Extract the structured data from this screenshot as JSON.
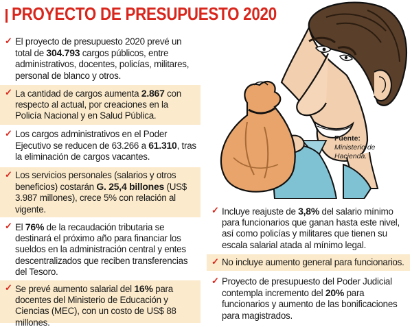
{
  "title": "PROYECTO DE PRESUPUESTO 2020",
  "left_items": [
    {
      "pre": "El proyecto de presupuesto 2020 prevé un total de ",
      "bold": "304.793",
      "post": " cargos públicos, entre administrativos, docentes, policías, militares, personal de blanco y otros."
    },
    {
      "pre": "La cantidad de cargos aumenta ",
      "bold": "2.867",
      "post": " con respecto al actual, por creaciones en la Policía Nacional y en Salud Pública."
    },
    {
      "pre": "Los cargos administrativos en el Poder Ejecutivo se reducen de 63.266 a ",
      "bold": "61.310",
      "post": ", tras la eliminación de cargos vacantes."
    },
    {
      "pre": "Los servicios personales (salarios y otros beneficios) costarán ",
      "bold": "G. 25,4 billones",
      "post": " (US$ 3.987 millones), crece 5% con relación al vigente."
    },
    {
      "pre": "El ",
      "bold": "76%",
      "post": " de la recaudación tributaria se destinará el próximo año para financiar los sueldos en la administración central y entes descentralizados que reciben transferencias del Tesoro."
    },
    {
      "pre": "Se prevé aumento salarial del ",
      "bold": "16%",
      "post": " para docentes del Ministerio de Educación y Ciencias (MEC), con un costo de US$ 88 millones."
    }
  ],
  "right_items": [
    {
      "pre": "Incluye reajuste de ",
      "bold": "3,8%",
      "post": " del salario mínimo para funcionarios que ganan hasta este nivel, así como policías y militares que tienen su escala salarial atada al mínimo legal."
    },
    {
      "pre": "No incluye aumento general para funcionarios.",
      "bold": "",
      "post": ""
    },
    {
      "pre": "Proyecto de presupuesto del Poder Judicial contempla incremento del ",
      "bold": "20%",
      "post": " para funcionarios y aumento de las bonificaciones para magistrados."
    }
  ],
  "source": {
    "label": "Fuente:",
    "lines": [
      "Ministerio de",
      "Hacienda."
    ]
  },
  "check_glyph": "✓",
  "colors": {
    "accent": "#d9261c",
    "shade": "#fbeacb",
    "bag": "#e8a46a",
    "skin": "#f2cfae"
  }
}
